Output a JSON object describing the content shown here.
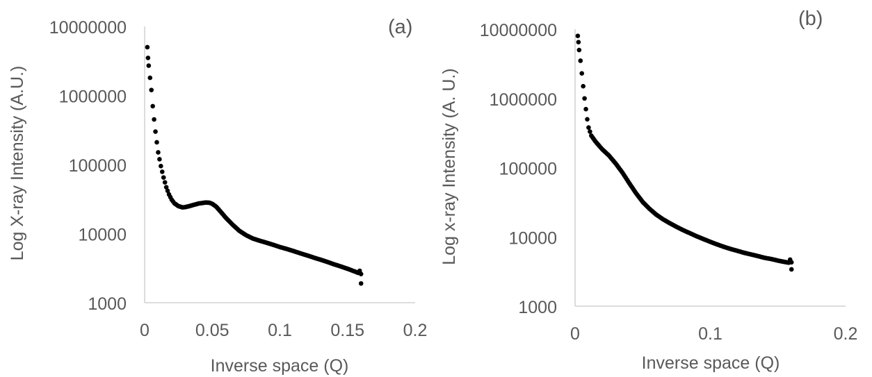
{
  "chart_data": [
    {
      "type": "scatter",
      "panel_label": "(a)",
      "xlabel": "Inverse space (Q)",
      "ylabel": "Log X-ray Intensity (A.U.)",
      "xlim": [
        0,
        0.2
      ],
      "ylim": [
        1000,
        10000000
      ],
      "yscale": "log",
      "x_ticks": [
        "0",
        "0.05",
        "0.1",
        "0.15",
        "0.2"
      ],
      "y_ticks": [
        "1000",
        "10000",
        "100000",
        "1000000",
        "10000000"
      ],
      "grid": false,
      "marker_color": "#000000",
      "points": [
        [
          0.002,
          5000000
        ],
        [
          0.0025,
          3500000
        ],
        [
          0.003,
          2700000
        ],
        [
          0.004,
          1800000
        ],
        [
          0.005,
          1200000
        ],
        [
          0.006,
          700000
        ],
        [
          0.007,
          450000
        ],
        [
          0.008,
          300000
        ],
        [
          0.009,
          210000
        ],
        [
          0.01,
          150000
        ],
        [
          0.012,
          95000
        ],
        [
          0.014,
          65000
        ],
        [
          0.016,
          47000
        ],
        [
          0.018,
          37000
        ],
        [
          0.02,
          31000
        ],
        [
          0.022,
          27500
        ],
        [
          0.025,
          25000
        ],
        [
          0.028,
          24000
        ],
        [
          0.03,
          24200
        ],
        [
          0.033,
          25000
        ],
        [
          0.036,
          26000
        ],
        [
          0.04,
          27300
        ],
        [
          0.045,
          28200
        ],
        [
          0.048,
          28000
        ],
        [
          0.05,
          27000
        ],
        [
          0.053,
          24500
        ],
        [
          0.056,
          21000
        ],
        [
          0.06,
          17000
        ],
        [
          0.065,
          13500
        ],
        [
          0.07,
          11000
        ],
        [
          0.075,
          9500
        ],
        [
          0.08,
          8500
        ],
        [
          0.085,
          7900
        ],
        [
          0.09,
          7400
        ],
        [
          0.095,
          6900
        ],
        [
          0.1,
          6400
        ],
        [
          0.105,
          6000
        ],
        [
          0.11,
          5600
        ],
        [
          0.115,
          5200
        ],
        [
          0.12,
          4850
        ],
        [
          0.125,
          4500
        ],
        [
          0.13,
          4200
        ],
        [
          0.135,
          3900
        ],
        [
          0.14,
          3600
        ],
        [
          0.145,
          3350
        ],
        [
          0.15,
          3100
        ],
        [
          0.155,
          2850
        ],
        [
          0.158,
          2700
        ],
        [
          0.159,
          2900
        ],
        [
          0.16,
          2600
        ],
        [
          0.16,
          1900
        ]
      ]
    },
    {
      "type": "scatter",
      "panel_label": "(b)",
      "xlabel": "Inverse space (Q)",
      "ylabel": "Log x-ray Intensity (A. U.)",
      "xlim": [
        0,
        0.2
      ],
      "ylim": [
        1000,
        10000000
      ],
      "yscale": "log",
      "x_ticks": [
        "0",
        "0.1",
        "0.2"
      ],
      "y_ticks": [
        "1000",
        "10000",
        "100000",
        "1000000",
        "10000000"
      ],
      "grid": false,
      "marker_color": "#000000",
      "points": [
        [
          0.002,
          8000000
        ],
        [
          0.0025,
          6500000
        ],
        [
          0.003,
          5000000
        ],
        [
          0.004,
          3500000
        ],
        [
          0.005,
          2300000
        ],
        [
          0.006,
          1500000
        ],
        [
          0.007,
          1000000
        ],
        [
          0.008,
          700000
        ],
        [
          0.009,
          500000
        ],
        [
          0.01,
          380000
        ],
        [
          0.012,
          290000
        ],
        [
          0.015,
          240000
        ],
        [
          0.018,
          205000
        ],
        [
          0.02,
          185000
        ],
        [
          0.025,
          150000
        ],
        [
          0.03,
          115000
        ],
        [
          0.035,
          85000
        ],
        [
          0.04,
          60000
        ],
        [
          0.045,
          43000
        ],
        [
          0.05,
          32000
        ],
        [
          0.055,
          25500
        ],
        [
          0.06,
          21000
        ],
        [
          0.065,
          18000
        ],
        [
          0.07,
          15800
        ],
        [
          0.075,
          14000
        ],
        [
          0.08,
          12500
        ],
        [
          0.085,
          11300
        ],
        [
          0.09,
          10200
        ],
        [
          0.095,
          9300
        ],
        [
          0.1,
          8500
        ],
        [
          0.105,
          7800
        ],
        [
          0.11,
          7200
        ],
        [
          0.115,
          6700
        ],
        [
          0.12,
          6300
        ],
        [
          0.125,
          5900
        ],
        [
          0.13,
          5600
        ],
        [
          0.135,
          5300
        ],
        [
          0.14,
          5000
        ],
        [
          0.145,
          4800
        ],
        [
          0.15,
          4550
        ],
        [
          0.155,
          4350
        ],
        [
          0.158,
          4250
        ],
        [
          0.159,
          4700
        ],
        [
          0.16,
          4300
        ],
        [
          0.16,
          3400
        ]
      ]
    }
  ]
}
